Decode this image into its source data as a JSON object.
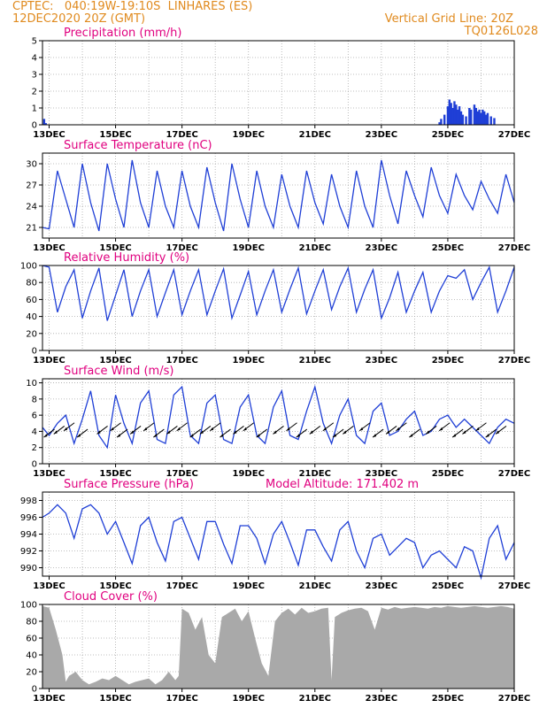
{
  "header": {
    "line1_left": "CPTEC:   040:19W-19:10S  LINHARES (ES)",
    "line2_left": "12DEC2020 20Z (GMT)",
    "line1_right": "Vertical Grid Line: 20Z",
    "line2_right": "TQ0126L028"
  },
  "colors": {
    "header": "#e08a1e",
    "title": "#e0007f",
    "line": "#1f3fd6",
    "cloud": "#a9a9a9",
    "grid": "#aaaaaa"
  },
  "x_tick_labels": [
    "13DEC",
    "15DEC",
    "17DEC",
    "19DEC",
    "21DEC",
    "23DEC",
    "25DEC",
    "27DEC"
  ],
  "chart_data": [
    {
      "type": "bar",
      "title": "Precipitation (mm/h)",
      "ylim": [
        0,
        5
      ],
      "yticks": [
        "0",
        "1",
        "2",
        "3",
        "4",
        "5"
      ],
      "x_range_days": [
        12.8,
        27.0
      ],
      "bars": [
        {
          "x": 12.85,
          "v": 0.35
        },
        {
          "x": 12.9,
          "v": 0.1
        },
        {
          "x": 24.75,
          "v": 0.15
        },
        {
          "x": 24.8,
          "v": 0.35
        },
        {
          "x": 24.9,
          "v": 0.6
        },
        {
          "x": 25.0,
          "v": 1.1
        },
        {
          "x": 25.05,
          "v": 1.5
        },
        {
          "x": 25.1,
          "v": 1.3
        },
        {
          "x": 25.15,
          "v": 1.0
        },
        {
          "x": 25.2,
          "v": 1.4
        },
        {
          "x": 25.25,
          "v": 1.2
        },
        {
          "x": 25.3,
          "v": 0.9
        },
        {
          "x": 25.35,
          "v": 1.1
        },
        {
          "x": 25.4,
          "v": 0.8
        },
        {
          "x": 25.45,
          "v": 0.6
        },
        {
          "x": 25.55,
          "v": 0.5
        },
        {
          "x": 25.65,
          "v": 1.0
        },
        {
          "x": 25.7,
          "v": 0.9
        },
        {
          "x": 25.8,
          "v": 1.2
        },
        {
          "x": 25.85,
          "v": 1.0
        },
        {
          "x": 25.9,
          "v": 0.8
        },
        {
          "x": 25.95,
          "v": 0.9
        },
        {
          "x": 26.0,
          "v": 0.7
        },
        {
          "x": 26.05,
          "v": 0.9
        },
        {
          "x": 26.1,
          "v": 0.8
        },
        {
          "x": 26.15,
          "v": 0.6
        },
        {
          "x": 26.2,
          "v": 0.7
        },
        {
          "x": 26.3,
          "v": 0.5
        },
        {
          "x": 26.4,
          "v": 0.4
        }
      ]
    },
    {
      "type": "line",
      "title": "Surface Temperature (nC)",
      "ylim": [
        19.5,
        31.5
      ],
      "yticks": [
        "21",
        "24",
        "27",
        "30"
      ],
      "ytick_values": [
        21,
        24,
        27,
        30
      ],
      "series": {
        "x": [
          12.8,
          13.0,
          13.25,
          13.5,
          13.75,
          14.0,
          14.25,
          14.5,
          14.75,
          15.0,
          15.25,
          15.5,
          15.75,
          16.0,
          16.25,
          16.5,
          16.75,
          17.0,
          17.25,
          17.5,
          17.75,
          18.0,
          18.25,
          18.5,
          18.75,
          19.0,
          19.25,
          19.5,
          19.75,
          20.0,
          20.25,
          20.5,
          20.75,
          21.0,
          21.25,
          21.5,
          21.75,
          22.0,
          22.25,
          22.5,
          22.75,
          23.0,
          23.25,
          23.5,
          23.75,
          24.0,
          24.25,
          24.5,
          24.75,
          25.0,
          25.25,
          25.5,
          25.75,
          26.0,
          26.25,
          26.5,
          26.75,
          27.0
        ],
        "y": [
          21.0,
          20.8,
          29.0,
          25.0,
          21.0,
          30.0,
          24.5,
          20.5,
          30.0,
          25.0,
          21.0,
          30.5,
          24.5,
          21.0,
          29.0,
          24.0,
          21.0,
          29.0,
          24.0,
          21.0,
          29.5,
          24.5,
          20.5,
          30.0,
          25.0,
          21.0,
          29.0,
          24.0,
          21.0,
          28.5,
          24.0,
          21.0,
          29.0,
          24.5,
          21.5,
          28.5,
          24.0,
          21.0,
          29.0,
          24.0,
          21.0,
          30.5,
          25.5,
          21.5,
          29.0,
          25.5,
          22.5,
          29.5,
          25.5,
          23.0,
          28.5,
          25.5,
          23.5,
          27.5,
          25.0,
          23.0,
          28.5,
          24.5
        ]
      }
    },
    {
      "type": "line",
      "title": "Relative Humidity (%)",
      "ylim": [
        0,
        100
      ],
      "yticks": [
        "0",
        "20",
        "40",
        "60",
        "80",
        "100"
      ],
      "ytick_values": [
        0,
        20,
        40,
        60,
        80,
        100
      ],
      "series": {
        "x": [
          12.8,
          13.0,
          13.25,
          13.5,
          13.75,
          14.0,
          14.25,
          14.5,
          14.75,
          15.0,
          15.25,
          15.5,
          15.75,
          16.0,
          16.25,
          16.5,
          16.75,
          17.0,
          17.25,
          17.5,
          17.75,
          18.0,
          18.25,
          18.5,
          18.75,
          19.0,
          19.25,
          19.5,
          19.75,
          20.0,
          20.25,
          20.5,
          20.75,
          21.0,
          21.25,
          21.5,
          21.75,
          22.0,
          22.25,
          22.5,
          22.75,
          23.0,
          23.25,
          23.5,
          23.75,
          24.0,
          24.25,
          24.5,
          24.75,
          25.0,
          25.25,
          25.5,
          25.75,
          26.0,
          26.25,
          26.5,
          26.75,
          27.0
        ],
        "y": [
          100,
          98,
          45,
          75,
          95,
          38,
          70,
          97,
          35,
          65,
          95,
          40,
          70,
          95,
          40,
          68,
          95,
          42,
          70,
          95,
          42,
          70,
          96,
          38,
          65,
          93,
          42,
          70,
          95,
          45,
          72,
          97,
          43,
          70,
          95,
          48,
          75,
          97,
          45,
          72,
          95,
          38,
          62,
          92,
          45,
          70,
          92,
          45,
          70,
          88,
          85,
          95,
          60,
          80,
          98,
          45,
          70,
          98
        ]
      }
    },
    {
      "type": "line",
      "title": "Surface Wind (m/s)",
      "ylim": [
        0,
        10.5
      ],
      "yticks": [
        "0",
        "2",
        "4",
        "6",
        "8",
        "10"
      ],
      "ytick_values": [
        0,
        2,
        4,
        6,
        8,
        10
      ],
      "series": {
        "x": [
          12.8,
          13.0,
          13.25,
          13.5,
          13.75,
          14.0,
          14.25,
          14.5,
          14.75,
          15.0,
          15.25,
          15.5,
          15.75,
          16.0,
          16.25,
          16.5,
          16.75,
          17.0,
          17.25,
          17.5,
          17.75,
          18.0,
          18.25,
          18.5,
          18.75,
          19.0,
          19.25,
          19.5,
          19.75,
          20.0,
          20.25,
          20.5,
          20.75,
          21.0,
          21.25,
          21.5,
          21.75,
          22.0,
          22.25,
          22.5,
          22.75,
          23.0,
          23.25,
          23.5,
          23.75,
          24.0,
          24.25,
          24.5,
          24.75,
          25.0,
          25.25,
          25.5,
          25.75,
          26.0,
          26.25,
          26.5,
          26.75,
          27.0
        ],
        "y": [
          4.5,
          3.5,
          5.0,
          6.0,
          2.5,
          5.5,
          9.0,
          3.5,
          2.0,
          8.5,
          5.0,
          2.5,
          7.5,
          9.0,
          3.0,
          2.5,
          8.5,
          9.5,
          3.5,
          2.5,
          7.5,
          8.5,
          3.0,
          2.5,
          7.0,
          8.5,
          3.5,
          2.5,
          7.0,
          9.0,
          3.5,
          3.0,
          6.5,
          9.5,
          5.0,
          2.5,
          6.0,
          8.0,
          3.5,
          2.5,
          6.5,
          7.5,
          3.5,
          4.0,
          5.5,
          6.5,
          3.5,
          4.0,
          5.5,
          6.0,
          4.5,
          5.5,
          4.5,
          3.5,
          2.5,
          4.5,
          5.5,
          5.0
        ]
      },
      "arrows_x": [
        13.0,
        13.3,
        13.6,
        14.0,
        14.6,
        15.0,
        15.2,
        15.6,
        16.0,
        16.3,
        16.7,
        17.0,
        17.4,
        17.7,
        18.0,
        18.3,
        18.7,
        19.0,
        19.4,
        19.9,
        20.3,
        20.6,
        21.0,
        21.4,
        21.7,
        22.0,
        22.5,
        22.9,
        23.3,
        23.6,
        24.0,
        24.5,
        24.9,
        25.3,
        25.6,
        26.0,
        26.3,
        26.6
      ]
    },
    {
      "type": "line",
      "title": "Surface Pressure (hPa)",
      "annotation": "Model Altitude: 171.402 m",
      "ylim": [
        989,
        999
      ],
      "yticks": [
        "990",
        "992",
        "994",
        "996",
        "998"
      ],
      "ytick_values": [
        990,
        992,
        994,
        996,
        998
      ],
      "series": {
        "x": [
          12.8,
          13.0,
          13.25,
          13.5,
          13.75,
          14.0,
          14.25,
          14.5,
          14.75,
          15.0,
          15.25,
          15.5,
          15.75,
          16.0,
          16.25,
          16.5,
          16.75,
          17.0,
          17.25,
          17.5,
          17.75,
          18.0,
          18.25,
          18.5,
          18.75,
          19.0,
          19.25,
          19.5,
          19.75,
          20.0,
          20.25,
          20.5,
          20.75,
          21.0,
          21.25,
          21.5,
          21.75,
          22.0,
          22.25,
          22.5,
          22.75,
          23.0,
          23.25,
          23.5,
          23.75,
          24.0,
          24.25,
          24.5,
          24.75,
          25.0,
          25.25,
          25.5,
          25.75,
          26.0,
          26.25,
          26.5,
          26.75,
          27.0
        ],
        "y": [
          996.0,
          996.5,
          997.5,
          996.5,
          993.5,
          997.0,
          997.5,
          996.5,
          994.0,
          995.5,
          993.0,
          990.5,
          995.0,
          996.0,
          993.0,
          990.8,
          995.5,
          996.0,
          993.5,
          991.0,
          995.5,
          995.5,
          992.8,
          990.5,
          995.0,
          995.0,
          993.5,
          990.5,
          994.0,
          995.5,
          993.0,
          990.3,
          994.5,
          994.5,
          992.5,
          990.8,
          994.5,
          995.5,
          992.0,
          990.0,
          993.5,
          994.0,
          991.5,
          992.5,
          993.5,
          993.0,
          990.0,
          991.5,
          992.0,
          991.0,
          990.0,
          992.5,
          992.0,
          988.8,
          993.5,
          995.0,
          991.0,
          993.0
        ]
      }
    },
    {
      "type": "area",
      "title": "Cloud Cover (%)",
      "ylim": [
        0,
        100
      ],
      "yticks": [
        "0",
        "20",
        "40",
        "60",
        "80",
        "100"
      ],
      "ytick_values": [
        0,
        20,
        40,
        60,
        80,
        100
      ],
      "series": {
        "x": [
          12.8,
          13.0,
          13.2,
          13.4,
          13.5,
          13.6,
          13.8,
          14.0,
          14.2,
          14.4,
          14.6,
          14.8,
          15.0,
          15.2,
          15.4,
          15.6,
          15.8,
          16.0,
          16.2,
          16.4,
          16.6,
          16.8,
          16.9,
          17.0,
          17.2,
          17.4,
          17.6,
          17.8,
          18.0,
          18.2,
          18.4,
          18.6,
          18.8,
          19.0,
          19.2,
          19.4,
          19.6,
          19.8,
          20.0,
          20.2,
          20.4,
          20.6,
          20.8,
          21.0,
          21.2,
          21.4,
          21.5,
          21.6,
          21.8,
          22.0,
          22.2,
          22.4,
          22.6,
          22.8,
          23.0,
          23.2,
          23.4,
          23.6,
          23.8,
          24.0,
          24.2,
          24.4,
          24.6,
          24.8,
          25.0,
          25.2,
          25.4,
          25.6,
          25.8,
          26.0,
          26.2,
          26.4,
          26.6,
          26.8,
          27.0
        ],
        "y": [
          98,
          96,
          70,
          40,
          8,
          15,
          20,
          10,
          5,
          8,
          12,
          10,
          15,
          10,
          5,
          8,
          10,
          12,
          5,
          10,
          20,
          10,
          15,
          95,
          90,
          70,
          85,
          40,
          30,
          85,
          90,
          95,
          80,
          92,
          60,
          30,
          15,
          80,
          90,
          95,
          88,
          96,
          90,
          92,
          95,
          96,
          10,
          85,
          90,
          93,
          95,
          96,
          92,
          70,
          96,
          94,
          97,
          95,
          96,
          97,
          96,
          95,
          97,
          96,
          98,
          97,
          96,
          97,
          98,
          97,
          96,
          97,
          98,
          97,
          95
        ]
      }
    }
  ]
}
